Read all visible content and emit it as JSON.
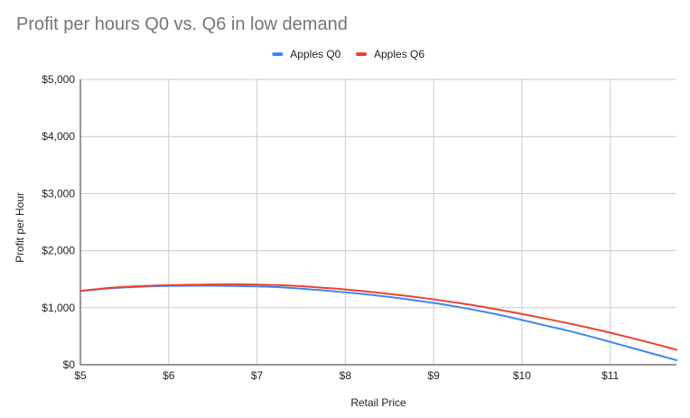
{
  "chart_data": {
    "type": "line",
    "title": "Profit per hours Q0 vs. Q6 in low demand",
    "xlabel": "Retail Price",
    "ylabel": "Profit per Hour",
    "xlim": [
      5,
      11.75
    ],
    "ylim": [
      0,
      5000
    ],
    "x_ticks": [
      5,
      6,
      7,
      8,
      9,
      10,
      11
    ],
    "x_tick_labels": [
      "$5",
      "$6",
      "$7",
      "$8",
      "$9",
      "$10",
      "$11"
    ],
    "y_ticks": [
      0,
      1000,
      2000,
      3000,
      4000,
      5000
    ],
    "y_tick_labels": [
      "$0",
      "$1,000",
      "$2,000",
      "$3,000",
      "$4,000",
      "$5,000"
    ],
    "legend_position": "top-center",
    "grid": true,
    "x": [
      5,
      5.25,
      5.5,
      5.75,
      6,
      6.25,
      6.5,
      6.75,
      7,
      7.25,
      7.5,
      7.75,
      8,
      8.25,
      8.5,
      8.75,
      9,
      9.25,
      9.5,
      9.75,
      10,
      10.25,
      10.5,
      10.75,
      11,
      11.25,
      11.5,
      11.75
    ],
    "series": [
      {
        "name": "Apples Q0",
        "color": "#4285f4",
        "values": [
          1290,
          1327,
          1354,
          1371,
          1380,
          1384,
          1384,
          1380,
          1373,
          1358,
          1333,
          1303,
          1270,
          1232,
          1188,
          1138,
          1083,
          1020,
          950,
          872,
          785,
          693,
          604,
          505,
          400,
          293,
          186,
          80
        ]
      },
      {
        "name": "Apples Q6",
        "color": "#ea4335",
        "values": [
          1295,
          1336,
          1364,
          1383,
          1394,
          1402,
          1408,
          1410,
          1405,
          1394,
          1376,
          1349,
          1320,
          1282,
          1241,
          1196,
          1146,
          1090,
          1030,
          961,
          890,
          813,
          735,
          651,
          562,
          466,
          367,
          262
        ]
      }
    ]
  }
}
